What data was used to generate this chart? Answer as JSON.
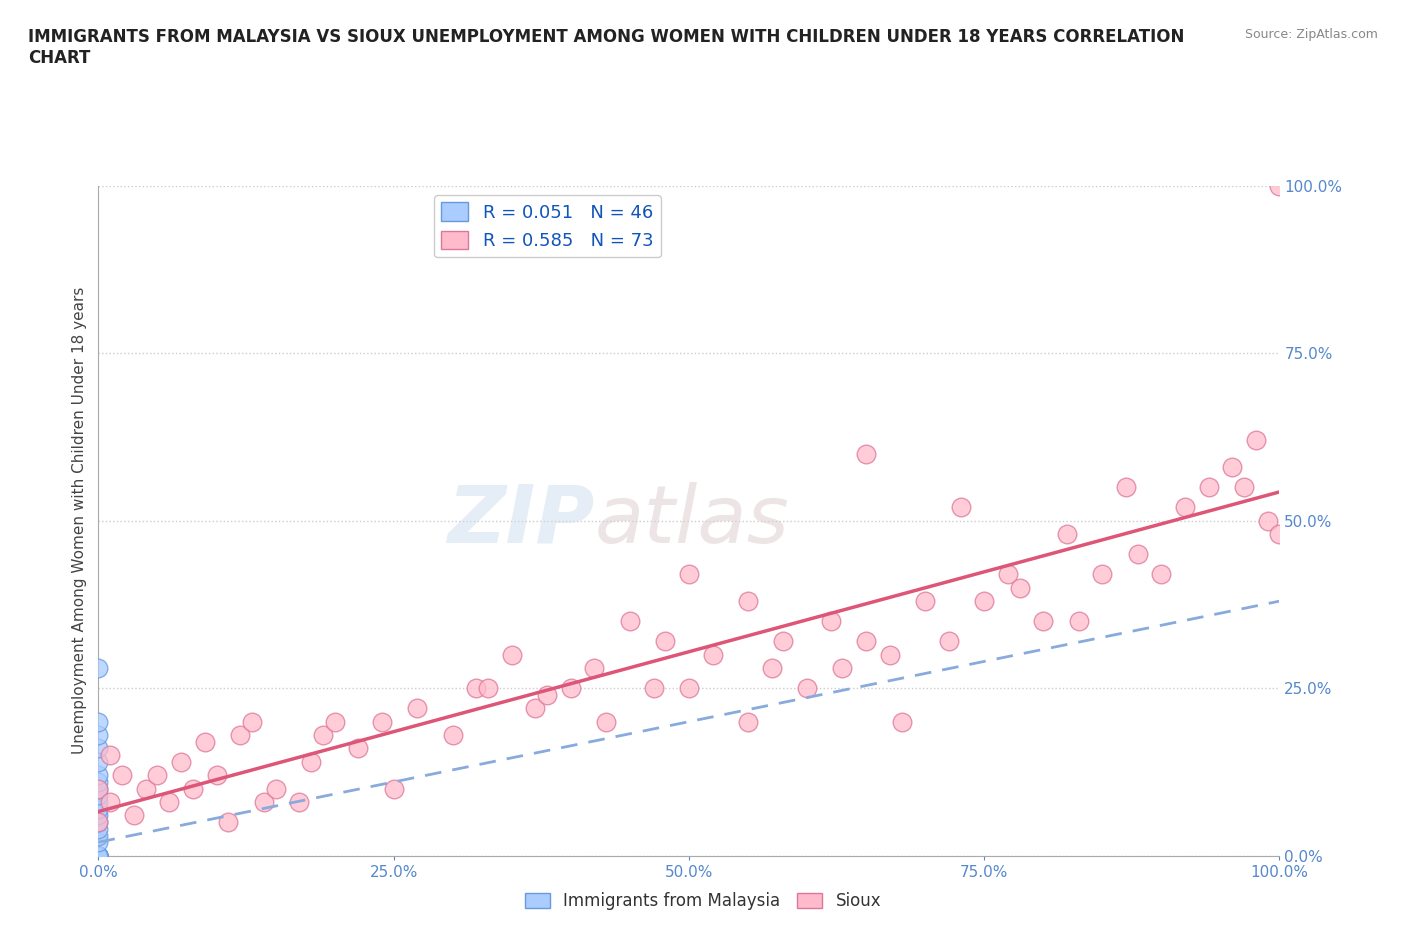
{
  "title": "IMMIGRANTS FROM MALAYSIA VS SIOUX UNEMPLOYMENT AMONG WOMEN WITH CHILDREN UNDER 18 YEARS CORRELATION\nCHART",
  "source": "Source: ZipAtlas.com",
  "ylabel": "Unemployment Among Women with Children Under 18 years",
  "xlabel": "",
  "xlim": [
    0,
    1.0
  ],
  "ylim": [
    0,
    1.0
  ],
  "xticks": [
    0,
    0.25,
    0.5,
    0.75,
    1.0
  ],
  "yticks": [
    0,
    0.25,
    0.5,
    0.75,
    1.0
  ],
  "xtick_labels": [
    "0.0%",
    "25.0%",
    "50.0%",
    "75.0%",
    "100.0%"
  ],
  "ytick_labels": [
    "0.0%",
    "25.0%",
    "50.0%",
    "75.0%",
    "100.0%"
  ],
  "series1_name": "Immigrants from Malaysia",
  "series1_color": "#aaccff",
  "series1_edge_color": "#6699dd",
  "series1_R": 0.051,
  "series1_N": 46,
  "series1_line_color": "#88aadd",
  "series2_name": "Sioux",
  "series2_color": "#ffbbcc",
  "series2_edge_color": "#dd7799",
  "series2_R": 0.585,
  "series2_N": 73,
  "series2_line_color": "#dd5577",
  "watermark_zip": "ZIP",
  "watermark_atlas": "atlas",
  "malaysia_x": [
    0.0,
    0.0,
    0.0,
    0.0,
    0.0,
    0.0,
    0.0,
    0.0,
    0.0,
    0.0,
    0.0,
    0.0,
    0.0,
    0.0,
    0.0,
    0.0,
    0.0,
    0.0,
    0.0,
    0.0,
    0.0,
    0.0,
    0.0,
    0.0,
    0.0,
    0.0,
    0.0,
    0.0,
    0.0,
    0.0,
    0.0,
    0.0,
    0.0,
    0.0,
    0.0,
    0.0,
    0.0,
    0.0,
    0.0,
    0.0,
    0.0,
    0.0,
    0.0,
    0.0,
    0.0,
    0.0
  ],
  "malaysia_y": [
    0.0,
    0.0,
    0.0,
    0.0,
    0.0,
    0.0,
    0.0,
    0.0,
    0.0,
    0.0,
    0.0,
    0.0,
    0.0,
    0.0,
    0.0,
    0.0,
    0.0,
    0.0,
    0.0,
    0.0,
    0.0,
    0.0,
    0.0,
    0.0,
    0.0,
    0.0,
    0.0,
    0.0,
    0.0,
    0.0,
    0.02,
    0.03,
    0.04,
    0.05,
    0.06,
    0.07,
    0.08,
    0.09,
    0.1,
    0.11,
    0.12,
    0.14,
    0.16,
    0.18,
    0.2,
    0.28
  ],
  "sioux_x": [
    0.0,
    0.0,
    0.01,
    0.01,
    0.02,
    0.03,
    0.04,
    0.05,
    0.06,
    0.07,
    0.08,
    0.09,
    0.1,
    0.11,
    0.12,
    0.13,
    0.14,
    0.15,
    0.17,
    0.18,
    0.19,
    0.2,
    0.22,
    0.24,
    0.25,
    0.27,
    0.3,
    0.32,
    0.33,
    0.35,
    0.37,
    0.38,
    0.4,
    0.42,
    0.43,
    0.45,
    0.47,
    0.48,
    0.5,
    0.5,
    0.52,
    0.55,
    0.55,
    0.57,
    0.58,
    0.6,
    0.62,
    0.63,
    0.65,
    0.67,
    0.68,
    0.7,
    0.72,
    0.73,
    0.75,
    0.77,
    0.78,
    0.8,
    0.82,
    0.83,
    0.85,
    0.87,
    0.88,
    0.9,
    0.92,
    0.94,
    0.96,
    0.97,
    0.98,
    0.99,
    1.0,
    1.0,
    0.65
  ],
  "sioux_y": [
    0.05,
    0.1,
    0.08,
    0.15,
    0.12,
    0.06,
    0.1,
    0.12,
    0.08,
    0.14,
    0.1,
    0.17,
    0.12,
    0.05,
    0.18,
    0.2,
    0.08,
    0.1,
    0.08,
    0.14,
    0.18,
    0.2,
    0.16,
    0.2,
    0.1,
    0.22,
    0.18,
    0.25,
    0.25,
    0.3,
    0.22,
    0.24,
    0.25,
    0.28,
    0.2,
    0.35,
    0.25,
    0.32,
    0.25,
    0.42,
    0.3,
    0.2,
    0.38,
    0.28,
    0.32,
    0.25,
    0.35,
    0.28,
    0.32,
    0.3,
    0.2,
    0.38,
    0.32,
    0.52,
    0.38,
    0.42,
    0.4,
    0.35,
    0.48,
    0.35,
    0.42,
    0.55,
    0.45,
    0.42,
    0.52,
    0.55,
    0.58,
    0.55,
    0.62,
    0.5,
    0.48,
    1.0,
    0.6
  ]
}
